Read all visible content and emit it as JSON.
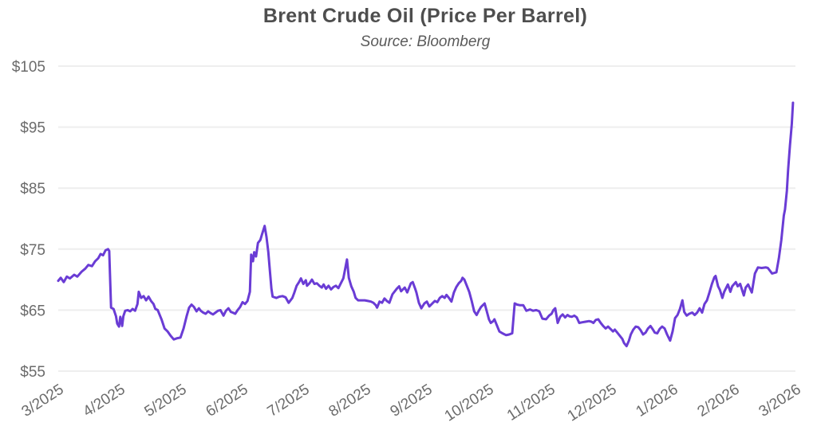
{
  "chart_data": {
    "type": "line",
    "title": "Brent Crude Oil (Price Per Barrel)",
    "subtitle": "Source: Bloomberg",
    "xlabel": "",
    "ylabel": "",
    "legend": "none",
    "grid": "horizontal",
    "ylim": [
      55,
      105
    ],
    "xlim_months": [
      0,
      12
    ],
    "y_ticks": [
      {
        "label": "$105",
        "value": 105
      },
      {
        "label": "$95",
        "value": 95
      },
      {
        "label": "$85",
        "value": 85
      },
      {
        "label": "$75",
        "value": 75
      },
      {
        "label": "$65",
        "value": 65
      },
      {
        "label": "$55",
        "value": 55
      }
    ],
    "x_tick_labels": [
      "3/2025",
      "4/2025",
      "5/2025",
      "6/2025",
      "7/2025",
      "8/2025",
      "9/2025",
      "10/2025",
      "11/2025",
      "12/2025",
      "1/2026",
      "2/2026",
      "3/2026"
    ],
    "x_tick_months": [
      0,
      1,
      2,
      3,
      4,
      5,
      6,
      7,
      8,
      9,
      10,
      11,
      12
    ],
    "line_color": "#6a3cd5",
    "grid_color": "#eeeeee",
    "axis_text_color": "#6b6b6b",
    "title_color": "#4e4e4e",
    "subtitle_color": "#5a5a5a",
    "background_color": "#ffffff",
    "series": [
      {
        "name": "Brent Crude Oil (Price Per Barrel)",
        "x_unit": "months since 3/2025",
        "y_unit": "USD per barrel",
        "points": [
          [
            0,
            69.8
          ],
          [
            0.04,
            70.3
          ],
          [
            0.09,
            69.6
          ],
          [
            0.14,
            70.5
          ],
          [
            0.19,
            70.2
          ],
          [
            0.26,
            70.8
          ],
          [
            0.31,
            70.5
          ],
          [
            0.38,
            71.3
          ],
          [
            0.44,
            71.8
          ],
          [
            0.49,
            72.4
          ],
          [
            0.55,
            72.2
          ],
          [
            0.6,
            73
          ],
          [
            0.65,
            73.5
          ],
          [
            0.69,
            74.2
          ],
          [
            0.73,
            74
          ],
          [
            0.77,
            74.8
          ],
          [
            0.81,
            75
          ],
          [
            0.83,
            74.7
          ],
          [
            0.86,
            65.4
          ],
          [
            0.9,
            65.2
          ],
          [
            0.94,
            64
          ],
          [
            0.96,
            62.8
          ],
          [
            0.99,
            62.3
          ],
          [
            1.01,
            63.9
          ],
          [
            1.04,
            62.4
          ],
          [
            1.06,
            64
          ],
          [
            1.09,
            64.9
          ],
          [
            1.13,
            65
          ],
          [
            1.17,
            64.8
          ],
          [
            1.21,
            65.2
          ],
          [
            1.25,
            64.9
          ],
          [
            1.29,
            66
          ],
          [
            1.31,
            68
          ],
          [
            1.35,
            67
          ],
          [
            1.39,
            67.3
          ],
          [
            1.43,
            66.6
          ],
          [
            1.47,
            67.2
          ],
          [
            1.51,
            66.5
          ],
          [
            1.55,
            66
          ],
          [
            1.58,
            65.2
          ],
          [
            1.62,
            65
          ],
          [
            1.68,
            63.5
          ],
          [
            1.73,
            62
          ],
          [
            1.78,
            61.5
          ],
          [
            1.83,
            60.8
          ],
          [
            1.88,
            60.2
          ],
          [
            1.94,
            60.4
          ],
          [
            1.99,
            60.5
          ],
          [
            2.04,
            62
          ],
          [
            2.09,
            64
          ],
          [
            2.13,
            65.4
          ],
          [
            2.17,
            65.9
          ],
          [
            2.21,
            65.5
          ],
          [
            2.25,
            64.8
          ],
          [
            2.29,
            65.3
          ],
          [
            2.32,
            64.9
          ],
          [
            2.36,
            64.6
          ],
          [
            2.4,
            64.4
          ],
          [
            2.44,
            64.8
          ],
          [
            2.48,
            64.5
          ],
          [
            2.52,
            64.3
          ],
          [
            2.56,
            64.6
          ],
          [
            2.6,
            64.9
          ],
          [
            2.64,
            65
          ],
          [
            2.69,
            64.1
          ],
          [
            2.73,
            64.9
          ],
          [
            2.77,
            65.3
          ],
          [
            2.81,
            64.7
          ],
          [
            2.84,
            64.6
          ],
          [
            2.88,
            64.4
          ],
          [
            2.92,
            65
          ],
          [
            2.96,
            65.5
          ],
          [
            3,
            66.3
          ],
          [
            3.04,
            66
          ],
          [
            3.08,
            66.5
          ],
          [
            3.12,
            68
          ],
          [
            3.14,
            74.1
          ],
          [
            3.17,
            73
          ],
          [
            3.19,
            74.5
          ],
          [
            3.22,
            73.8
          ],
          [
            3.25,
            76
          ],
          [
            3.29,
            76.5
          ],
          [
            3.32,
            77.5
          ],
          [
            3.36,
            78.8
          ],
          [
            3.39,
            77
          ],
          [
            3.42,
            74.5
          ],
          [
            3.44,
            72
          ],
          [
            3.47,
            68.5
          ],
          [
            3.49,
            67.2
          ],
          [
            3.55,
            67
          ],
          [
            3.6,
            67.2
          ],
          [
            3.65,
            67.3
          ],
          [
            3.7,
            67.1
          ],
          [
            3.75,
            66.2
          ],
          [
            3.81,
            67
          ],
          [
            3.84,
            67.8
          ],
          [
            3.88,
            69
          ],
          [
            3.92,
            69.6
          ],
          [
            3.95,
            70.2
          ],
          [
            3.99,
            69.3
          ],
          [
            4.03,
            69.9
          ],
          [
            4.05,
            69
          ],
          [
            4.09,
            69.4
          ],
          [
            4.13,
            70
          ],
          [
            4.17,
            69.3
          ],
          [
            4.21,
            69.4
          ],
          [
            4.25,
            69
          ],
          [
            4.29,
            68.7
          ],
          [
            4.32,
            69.2
          ],
          [
            4.36,
            68.5
          ],
          [
            4.4,
            69
          ],
          [
            4.44,
            68.4
          ],
          [
            4.48,
            68.8
          ],
          [
            4.52,
            69
          ],
          [
            4.56,
            68.6
          ],
          [
            4.6,
            69.4
          ],
          [
            4.64,
            70.2
          ],
          [
            4.7,
            73.3
          ],
          [
            4.73,
            70.3
          ],
          [
            4.77,
            68.9
          ],
          [
            4.81,
            68
          ],
          [
            4.84,
            67
          ],
          [
            4.88,
            66.6
          ],
          [
            4.94,
            66.6
          ],
          [
            4.99,
            66.6
          ],
          [
            5.04,
            66.5
          ],
          [
            5.09,
            66.4
          ],
          [
            5.13,
            66.2
          ],
          [
            5.17,
            65.8
          ],
          [
            5.19,
            65.4
          ],
          [
            5.23,
            66.4
          ],
          [
            5.27,
            66.2
          ],
          [
            5.31,
            66.9
          ],
          [
            5.35,
            66.5
          ],
          [
            5.39,
            66.2
          ],
          [
            5.44,
            67.6
          ],
          [
            5.51,
            68.5
          ],
          [
            5.55,
            68.9
          ],
          [
            5.58,
            68.1
          ],
          [
            5.64,
            68.7
          ],
          [
            5.68,
            67.9
          ],
          [
            5.74,
            69.4
          ],
          [
            5.77,
            69.6
          ],
          [
            5.81,
            68.5
          ],
          [
            5.83,
            67.9
          ],
          [
            5.87,
            66.2
          ],
          [
            5.91,
            65.3
          ],
          [
            5.96,
            66.1
          ],
          [
            6,
            66.4
          ],
          [
            6.04,
            65.6
          ],
          [
            6.1,
            66.2
          ],
          [
            6.13,
            66.5
          ],
          [
            6.17,
            66.3
          ],
          [
            6.21,
            67
          ],
          [
            6.25,
            67.3
          ],
          [
            6.29,
            67
          ],
          [
            6.32,
            67.5
          ],
          [
            6.36,
            67
          ],
          [
            6.4,
            66.4
          ],
          [
            6.44,
            67.9
          ],
          [
            6.48,
            68.8
          ],
          [
            6.52,
            69.4
          ],
          [
            6.56,
            69.8
          ],
          [
            6.58,
            70.3
          ],
          [
            6.61,
            70
          ],
          [
            6.65,
            69
          ],
          [
            6.69,
            68
          ],
          [
            6.73,
            66.5
          ],
          [
            6.77,
            64.8
          ],
          [
            6.81,
            64.2
          ],
          [
            6.84,
            64.8
          ],
          [
            6.88,
            65.5
          ],
          [
            6.94,
            66.1
          ],
          [
            6.97,
            65
          ],
          [
            7.01,
            63.5
          ],
          [
            7.04,
            62.9
          ],
          [
            7.08,
            63.2
          ],
          [
            7.1,
            63.5
          ],
          [
            7.14,
            62.5
          ],
          [
            7.18,
            61.5
          ],
          [
            7.23,
            61.2
          ],
          [
            7.29,
            60.9
          ],
          [
            7.34,
            61
          ],
          [
            7.39,
            61.2
          ],
          [
            7.43,
            66.1
          ],
          [
            7.47,
            65.9
          ],
          [
            7.52,
            65.8
          ],
          [
            7.57,
            65.8
          ],
          [
            7.62,
            64.9
          ],
          [
            7.68,
            65.1
          ],
          [
            7.73,
            64.9
          ],
          [
            7.78,
            65
          ],
          [
            7.83,
            64.8
          ],
          [
            7.88,
            63.6
          ],
          [
            7.94,
            63.5
          ],
          [
            7.99,
            64.1
          ],
          [
            8.03,
            64.4
          ],
          [
            8.06,
            65
          ],
          [
            8.09,
            65.3
          ],
          [
            8.13,
            62.9
          ],
          [
            8.17,
            63.9
          ],
          [
            8.21,
            64.3
          ],
          [
            8.25,
            63.8
          ],
          [
            8.29,
            64.2
          ],
          [
            8.32,
            64
          ],
          [
            8.36,
            63.9
          ],
          [
            8.4,
            64.1
          ],
          [
            8.44,
            63.8
          ],
          [
            8.48,
            62.9
          ],
          [
            8.53,
            63
          ],
          [
            8.58,
            63.1
          ],
          [
            8.64,
            63.2
          ],
          [
            8.68,
            63.1
          ],
          [
            8.71,
            62.9
          ],
          [
            8.75,
            63.4
          ],
          [
            8.79,
            63.5
          ],
          [
            8.83,
            62.9
          ],
          [
            8.87,
            62.4
          ],
          [
            8.91,
            62
          ],
          [
            8.95,
            62.3
          ],
          [
            8.99,
            61.9
          ],
          [
            9.03,
            61.5
          ],
          [
            9.06,
            61.8
          ],
          [
            9.1,
            61.3
          ],
          [
            9.14,
            60.8
          ],
          [
            9.18,
            60.3
          ],
          [
            9.21,
            59.6
          ],
          [
            9.25,
            59.1
          ],
          [
            9.29,
            60
          ],
          [
            9.32,
            61
          ],
          [
            9.36,
            61.8
          ],
          [
            9.4,
            62.3
          ],
          [
            9.44,
            62.2
          ],
          [
            9.48,
            61.7
          ],
          [
            9.52,
            61
          ],
          [
            9.56,
            61.3
          ],
          [
            9.6,
            62
          ],
          [
            9.64,
            62.4
          ],
          [
            9.68,
            61.8
          ],
          [
            9.71,
            61.3
          ],
          [
            9.75,
            61.2
          ],
          [
            9.79,
            61.9
          ],
          [
            9.83,
            62.3
          ],
          [
            9.87,
            62
          ],
          [
            9.91,
            61
          ],
          [
            9.96,
            60
          ],
          [
            10,
            61.5
          ],
          [
            10.04,
            63.7
          ],
          [
            10.08,
            64.2
          ],
          [
            10.12,
            65.2
          ],
          [
            10.16,
            66.6
          ],
          [
            10.19,
            64.7
          ],
          [
            10.23,
            64.1
          ],
          [
            10.27,
            64.4
          ],
          [
            10.32,
            64.6
          ],
          [
            10.36,
            64.2
          ],
          [
            10.4,
            64.6
          ],
          [
            10.44,
            65.3
          ],
          [
            10.48,
            64.6
          ],
          [
            10.52,
            66
          ],
          [
            10.56,
            66.6
          ],
          [
            10.6,
            67.9
          ],
          [
            10.64,
            69.3
          ],
          [
            10.68,
            70.4
          ],
          [
            10.7,
            70.6
          ],
          [
            10.74,
            68.9
          ],
          [
            10.77,
            68.3
          ],
          [
            10.81,
            67
          ],
          [
            10.84,
            68
          ],
          [
            10.9,
            69.2
          ],
          [
            10.94,
            68
          ],
          [
            10.97,
            68.9
          ],
          [
            11.03,
            69.6
          ],
          [
            11.06,
            68.9
          ],
          [
            11.1,
            69.3
          ],
          [
            11.16,
            67.4
          ],
          [
            11.19,
            68.7
          ],
          [
            11.23,
            69.2
          ],
          [
            11.29,
            67.9
          ],
          [
            11.34,
            71
          ],
          [
            11.39,
            72
          ],
          [
            11.45,
            71.9
          ],
          [
            11.52,
            72
          ],
          [
            11.55,
            71.9
          ],
          [
            11.62,
            71
          ],
          [
            11.69,
            71.2
          ],
          [
            11.73,
            73.5
          ],
          [
            11.77,
            76.5
          ],
          [
            11.81,
            80.5
          ],
          [
            11.83,
            81.5
          ],
          [
            11.86,
            84.5
          ],
          [
            11.88,
            88
          ],
          [
            11.91,
            92
          ],
          [
            11.94,
            95.5
          ],
          [
            11.96,
            99
          ]
        ]
      }
    ]
  }
}
